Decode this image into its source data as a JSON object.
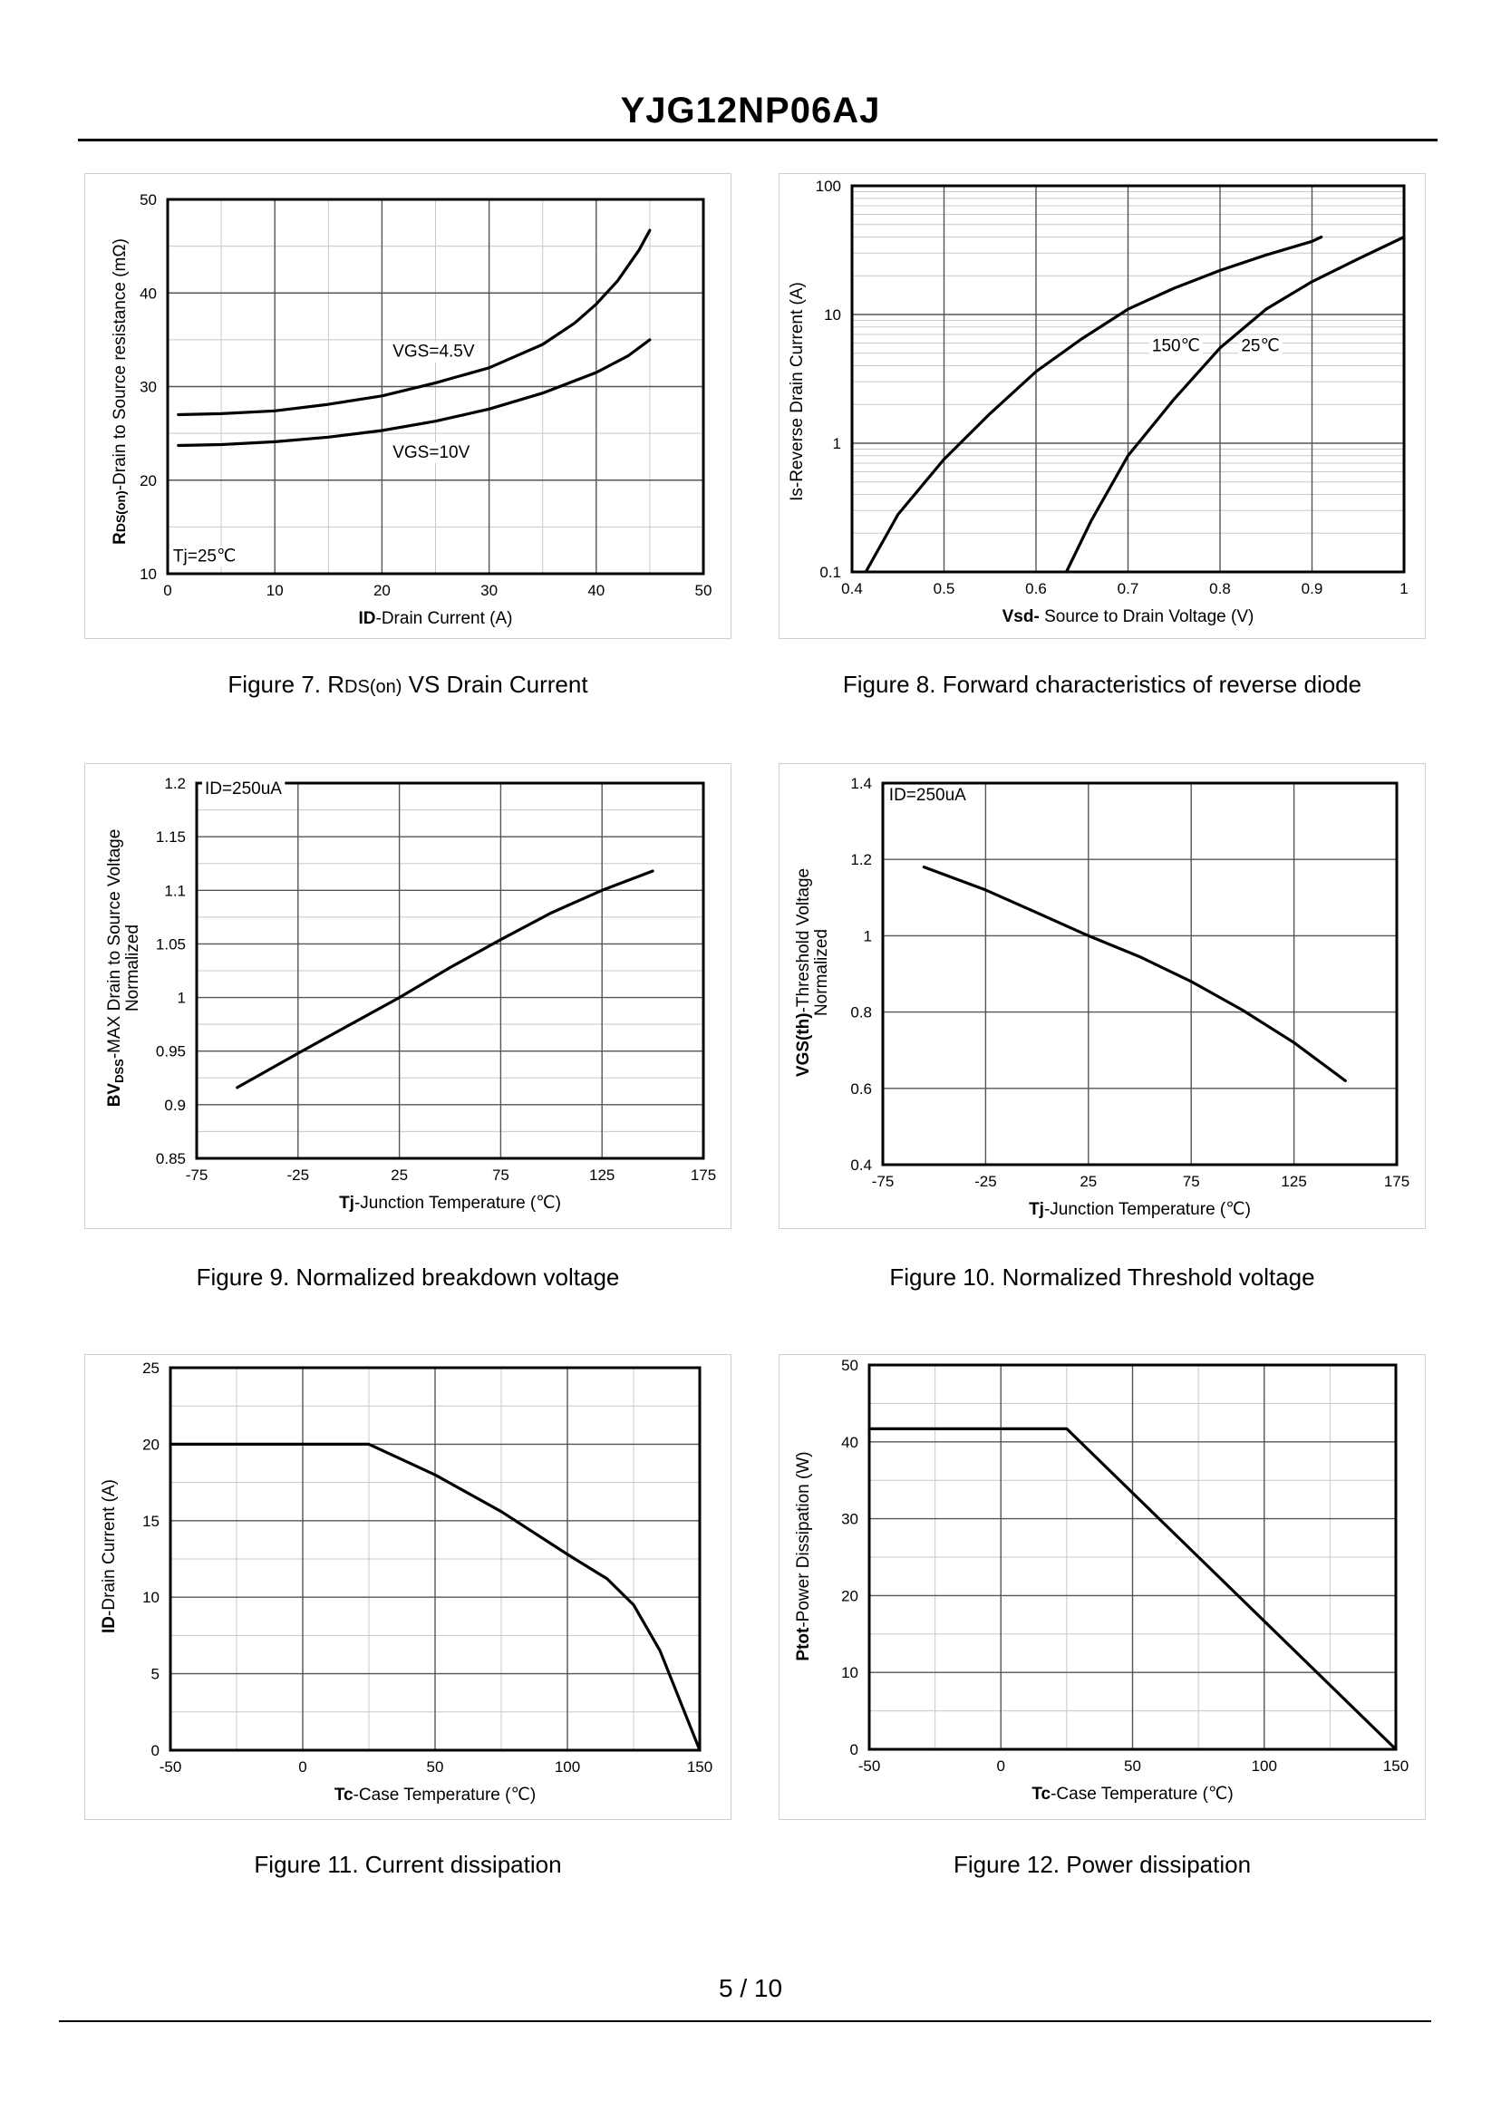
{
  "header": {
    "title": "YJG12NP06AJ"
  },
  "footer": {
    "page": "5 / 10"
  },
  "captions": {
    "fig7_prefix": "Figure 7.  R",
    "fig7_sub": "DS(on)",
    "fig7_suffix": " VS Drain Current",
    "fig8": "Figure 8.  Forward characteristics of reverse diode",
    "fig9": "Figure 9.  Normalized breakdown voltage",
    "fig10": "Figure 10.  Normalized Threshold voltage",
    "fig11": "Figure 11.  Current dissipation",
    "fig12": "Figure 12.  Power dissipation"
  },
  "chart_data": [
    {
      "id": "fig7",
      "type": "line",
      "title": "RDS(on) VS Drain Current",
      "xlabel": "ID-Drain Current  (A)",
      "ylabel": "RDS(on)-Drain to Source resistance  (mΩ)",
      "xlim": [
        0,
        50
      ],
      "ylim": [
        10,
        50
      ],
      "yscale": "linear",
      "xticks": [
        0,
        10,
        20,
        30,
        40,
        50
      ],
      "yticks": [
        10,
        20,
        30,
        40,
        50
      ],
      "xtick_labels": [
        "0",
        "10",
        "20",
        "30",
        "40",
        "50"
      ],
      "ytick_labels": [
        "10",
        "20",
        "30",
        "40",
        "50"
      ],
      "x_minor": 2,
      "y_minor": 2,
      "series": [
        {
          "name": "VGS=4.5V",
          "x": [
            1,
            5,
            10,
            15,
            20,
            25,
            30,
            35,
            38,
            40,
            42,
            44,
            45
          ],
          "y": [
            27,
            27.1,
            27.4,
            28.1,
            29,
            30.4,
            32,
            34.5,
            36.8,
            38.8,
            41.3,
            44.6,
            46.7
          ]
        },
        {
          "name": "VGS=10V",
          "x": [
            1,
            5,
            10,
            15,
            20,
            25,
            30,
            35,
            40,
            43,
            45
          ],
          "y": [
            23.7,
            23.8,
            24.1,
            24.6,
            25.3,
            26.3,
            27.6,
            29.3,
            31.5,
            33.3,
            35
          ]
        }
      ],
      "annotations": [
        {
          "text": "VGS=4.5V",
          "x": 21,
          "y": 33.2
        },
        {
          "text": "VGS=10V",
          "x": 21,
          "y": 22.4
        },
        {
          "text": "Tj=25℃",
          "x": 0.5,
          "y": 11.3
        }
      ]
    },
    {
      "id": "fig8",
      "type": "line",
      "title": "Forward characteristics of reverse diode",
      "xlabel": "Vsd- Source to Drain Voltage (V)",
      "ylabel": "Is-Reverse  Drain Current  (A)",
      "xlim": [
        0.4,
        1.0
      ],
      "ylim": [
        0.1,
        100
      ],
      "yscale": "log",
      "xticks": [
        0.4,
        0.5,
        0.6,
        0.7,
        0.8,
        0.9,
        1.0
      ],
      "yticks": [
        0.1,
        1,
        10,
        100
      ],
      "xtick_labels": [
        "0.4",
        "0.5",
        "0.6",
        "0.7",
        "0.8",
        "0.9",
        "1"
      ],
      "ytick_labels": [
        "0.1",
        "1",
        "10",
        "100"
      ],
      "x_minor": 1,
      "y_log_minor": true,
      "series": [
        {
          "name": "150℃",
          "x": [
            0.415,
            0.45,
            0.5,
            0.55,
            0.6,
            0.65,
            0.7,
            0.75,
            0.8,
            0.85,
            0.9,
            0.91
          ],
          "y": [
            0.1,
            0.28,
            0.75,
            1.7,
            3.6,
            6.5,
            11,
            16,
            22,
            29,
            37,
            40
          ]
        },
        {
          "name": "25℃",
          "x": [
            0.633,
            0.66,
            0.7,
            0.75,
            0.8,
            0.85,
            0.9,
            0.95,
            1.0
          ],
          "y": [
            0.1,
            0.25,
            0.8,
            2.2,
            5.5,
            11,
            18,
            27,
            40
          ]
        }
      ],
      "annotations": [
        {
          "text": "150℃",
          "x": 0.726,
          "y": 5.2
        },
        {
          "text": "25℃",
          "x": 0.823,
          "y": 5.2
        }
      ]
    },
    {
      "id": "fig9",
      "type": "line",
      "title": "Normalized breakdown voltage",
      "xlabel": "Tj-Junction  Temperature  (℃)",
      "ylabel": "BVDSS-MAX Drain to Source Voltage Normalized",
      "xlim": [
        -75,
        175
      ],
      "ylim": [
        0.85,
        1.2
      ],
      "yscale": "linear",
      "xticks": [
        -75,
        -25,
        25,
        75,
        125,
        175
      ],
      "yticks": [
        0.85,
        0.9,
        0.95,
        1,
        1.05,
        1.1,
        1.15,
        1.2
      ],
      "xtick_labels": [
        "-75",
        "-25",
        "25",
        "75",
        "125",
        "175"
      ],
      "ytick_labels": [
        "0.85",
        "0.9",
        "0.95",
        "1",
        "1.05",
        "1.1",
        "1.15",
        "1.2"
      ],
      "x_minor": 1,
      "y_minor": 2,
      "series": [
        {
          "name": "BVDSS",
          "x": [
            -55,
            -25,
            0,
            25,
            50,
            75,
            100,
            125,
            150
          ],
          "y": [
            0.916,
            0.948,
            0.974,
            1.0,
            1.028,
            1.054,
            1.079,
            1.1,
            1.118
          ]
        }
      ],
      "annotations": [
        {
          "text": "ID=250uA",
          "x": -71,
          "y": 1.19
        }
      ]
    },
    {
      "id": "fig10",
      "type": "line",
      "title": "Normalized Threshold voltage",
      "xlabel": "Tj-Junction  Temperature  (℃)",
      "ylabel": "VGS(th)-Threshold  Voltage Normalized",
      "xlim": [
        -75,
        175
      ],
      "ylim": [
        0.4,
        1.4
      ],
      "yscale": "linear",
      "xticks": [
        -75,
        -25,
        25,
        75,
        125,
        175
      ],
      "yticks": [
        0.4,
        0.6,
        0.8,
        1,
        1.2,
        1.4
      ],
      "xtick_labels": [
        "-75",
        "-25",
        "25",
        "75",
        "125",
        "175"
      ],
      "ytick_labels": [
        "0.4",
        "0.6",
        "0.8",
        "1",
        "1.2",
        "1.4"
      ],
      "x_minor": 1,
      "y_minor": 1,
      "series": [
        {
          "name": "VGS(th)",
          "x": [
            -55,
            -25,
            0,
            25,
            50,
            75,
            100,
            125,
            150
          ],
          "y": [
            1.18,
            1.12,
            1.06,
            1.0,
            0.945,
            0.88,
            0.805,
            0.72,
            0.62
          ]
        }
      ],
      "annotations": [
        {
          "text": "ID=250uA",
          "x": -72,
          "y": 1.355
        }
      ]
    },
    {
      "id": "fig11",
      "type": "line",
      "title": "Current dissipation",
      "xlabel": "Tc-Case Temperature  (℃)",
      "ylabel": "ID-Drain Current  (A)",
      "xlim": [
        -50,
        150
      ],
      "ylim": [
        0,
        25
      ],
      "yscale": "linear",
      "xticks": [
        -50,
        0,
        50,
        100,
        150
      ],
      "yticks": [
        0,
        5,
        10,
        15,
        20,
        25
      ],
      "xtick_labels": [
        "-50",
        "0",
        "50",
        "100",
        "150"
      ],
      "ytick_labels": [
        "0",
        "5",
        "10",
        "15",
        "20",
        "25"
      ],
      "x_minor": 2,
      "y_minor": 2,
      "series": [
        {
          "name": "ID",
          "x": [
            -50,
            25,
            50,
            75,
            100,
            115,
            125,
            135,
            150
          ],
          "y": [
            20,
            20,
            18,
            15.6,
            12.8,
            11.2,
            9.5,
            6.5,
            0
          ]
        }
      ],
      "annotations": []
    },
    {
      "id": "fig12",
      "type": "line",
      "title": "Power dissipation",
      "xlabel": "Tc-Case Temperature  (℃)",
      "ylabel": "Ptot-Power Dissipation  (W)",
      "xlim": [
        -50,
        150
      ],
      "ylim": [
        0,
        50
      ],
      "yscale": "linear",
      "xticks": [
        -50,
        0,
        50,
        100,
        150
      ],
      "yticks": [
        0,
        10,
        20,
        30,
        40,
        50
      ],
      "xtick_labels": [
        "-50",
        "0",
        "50",
        "100",
        "150"
      ],
      "ytick_labels": [
        "0",
        "10",
        "20",
        "30",
        "40",
        "50"
      ],
      "x_minor": 2,
      "y_minor": 2,
      "series": [
        {
          "name": "Ptot",
          "x": [
            -50,
            25,
            150
          ],
          "y": [
            41.7,
            41.7,
            0
          ]
        }
      ],
      "annotations": []
    }
  ]
}
